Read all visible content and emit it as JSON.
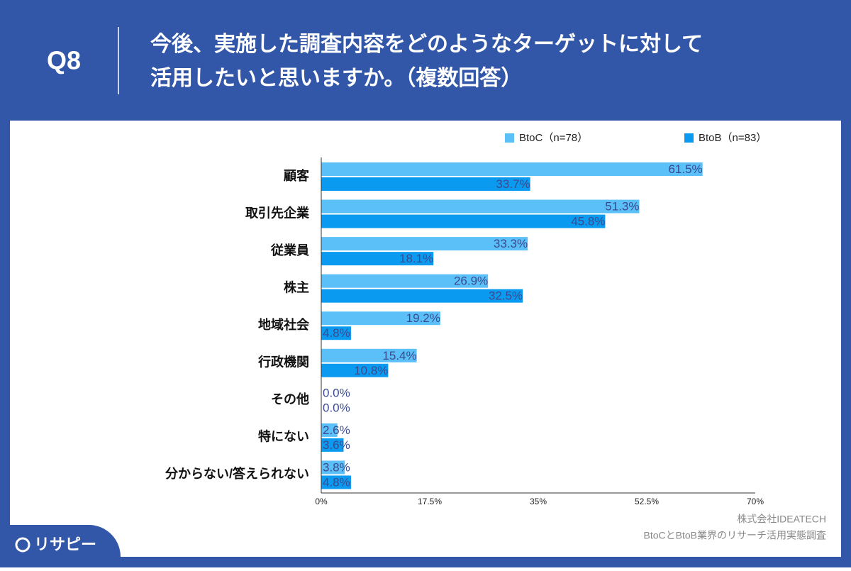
{
  "header": {
    "number": "Q8",
    "title": [
      "今後、実施した調査内容をどのようなターゲットに対して",
      "活用したいと思いますか。（複数回答）"
    ]
  },
  "chart_data": {
    "type": "hbar",
    "categories": [
      "顧客",
      "取引先企業",
      "従業員",
      "株主",
      "地域社会",
      "行政機関",
      "その他",
      "特にない",
      "分からない/答えられない"
    ],
    "series": [
      {
        "name": "BtoC（n=78）",
        "color": "#5cc0f8",
        "values": [
          61.5,
          51.3,
          33.3,
          26.9,
          19.2,
          15.4,
          0.0,
          2.6,
          3.8
        ],
        "value_labels": [
          "61.5%",
          "51.3%",
          "33.3%",
          "26.9%",
          "19.2%",
          "15.4%",
          "0.0%",
          "2.6%",
          "3.8%"
        ]
      },
      {
        "name": "BtoB（n=83）",
        "color": "#0a9bf0",
        "values": [
          33.7,
          45.8,
          18.1,
          32.5,
          4.8,
          10.8,
          0.0,
          3.6,
          4.8
        ],
        "value_labels": [
          "33.7%",
          "45.8%",
          "18.1%",
          "32.5%",
          "4.8%",
          "10.8%",
          "0.0%",
          "3.6%",
          "4.8%"
        ]
      }
    ],
    "xlim": [
      0,
      70
    ],
    "xticks": [
      {
        "value": 0,
        "label": "0%"
      },
      {
        "value": 17.5,
        "label": "17.5%"
      },
      {
        "value": 35,
        "label": "35%"
      },
      {
        "value": 52.5,
        "label": "52.5%"
      },
      {
        "value": 70,
        "label": "70%"
      }
    ],
    "legend": "top-right"
  },
  "source": [
    "株式会社IDEATECH",
    "BtoCとBtoB業界のリサーチ活用実態調査"
  ],
  "logo": "リサピー"
}
